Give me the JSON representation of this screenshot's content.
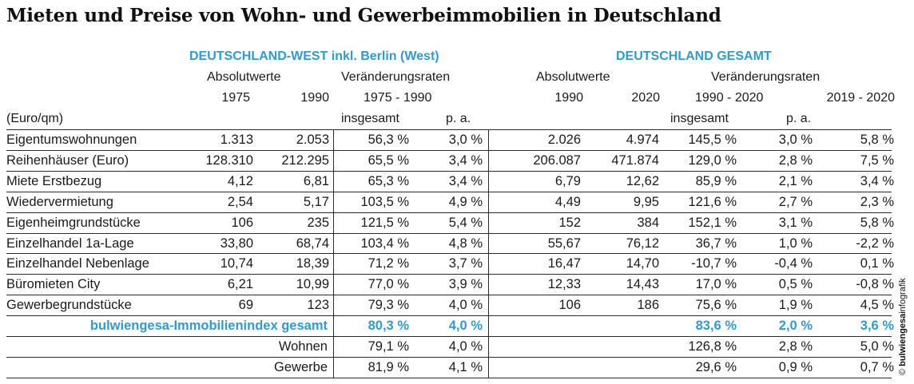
{
  "title": "Mieten und Preise von Wohn- und Gewerbeimmobilien in Deutschland",
  "west": {
    "heading": "DEUTSCHLAND-WEST inkl. Berlin (West)",
    "absolut_label": "Absolutwerte",
    "veraenderung_label": "Veränderungsraten",
    "year_a": "1975",
    "year_b": "1990",
    "range": "1975 - 1990",
    "insgesamt": "insgesamt",
    "pa": "p. a."
  },
  "gesamt": {
    "heading": "DEUTSCHLAND GESAMT",
    "absolut_label": "Absolutwerte",
    "veraenderung_label": "Veränderungsraten",
    "year_a": "1990",
    "year_b": "2020",
    "range": "1990 - 2020",
    "range2": "2019 - 2020",
    "insgesamt": "insgesamt",
    "pa": "p. a."
  },
  "unit_label": "(Euro/qm)",
  "rows": [
    {
      "label": "Eigentumswohnungen",
      "w1975": "1.313",
      "w1990": "2.053",
      "w_ins": "56,3 %",
      "w_pa": "3,0 %",
      "g1990": "2.026",
      "g2020": "4.974",
      "g_ins": "145,5 %",
      "g_pa": "3,0 %",
      "g_yy": "5,8 %"
    },
    {
      "label": "Reihenhäuser (Euro)",
      "w1975": "128.310",
      "w1990": "212.295",
      "w_ins": "65,5 %",
      "w_pa": "3,4 %",
      "g1990": "206.087",
      "g2020": "471.874",
      "g_ins": "129,0 %",
      "g_pa": "2,8 %",
      "g_yy": "7,5 %"
    },
    {
      "label": "Miete Erstbezug",
      "w1975": "4,12",
      "w1990": "6,81",
      "w_ins": "65,3 %",
      "w_pa": "3,4 %",
      "g1990": "6,79",
      "g2020": "12,62",
      "g_ins": "85,9 %",
      "g_pa": "2,1 %",
      "g_yy": "3,4 %"
    },
    {
      "label": "Wiedervermietung",
      "w1975": "2,54",
      "w1990": "5,17",
      "w_ins": "103,5 %",
      "w_pa": "4,9 %",
      "g1990": "4,49",
      "g2020": "9,95",
      "g_ins": "121,6 %",
      "g_pa": "2,7 %",
      "g_yy": "2,3 %"
    },
    {
      "label": "Eigenheimgrundstücke",
      "w1975": "106",
      "w1990": "235",
      "w_ins": "121,5 %",
      "w_pa": "5,4 %",
      "g1990": "152",
      "g2020": "384",
      "g_ins": "152,1 %",
      "g_pa": "3,1 %",
      "g_yy": "5,8 %"
    },
    {
      "label": "Einzelhandel 1a-Lage",
      "w1975": "33,80",
      "w1990": "68,74",
      "w_ins": "103,4 %",
      "w_pa": "4,8 %",
      "g1990": "55,67",
      "g2020": "76,12",
      "g_ins": "36,7 %",
      "g_pa": "1,0 %",
      "g_yy": "-2,2 %"
    },
    {
      "label": "Einzelhandel Nebenlage",
      "w1975": "10,74",
      "w1990": "18,39",
      "w_ins": "71,2 %",
      "w_pa": "3,7 %",
      "g1990": "16,47",
      "g2020": "14,70",
      "g_ins": "-10,7 %",
      "g_pa": "-0,4 %",
      "g_yy": "0,1 %"
    },
    {
      "label": "Büromieten City",
      "w1975": "6,21",
      "w1990": "10,99",
      "w_ins": "77,0 %",
      "w_pa": "3,9 %",
      "g1990": "12,33",
      "g2020": "14,43",
      "g_ins": "17,0 %",
      "g_pa": "0,5 %",
      "g_yy": "-0,8 %"
    },
    {
      "label": "Gewerbegrundstücke",
      "w1975": "69",
      "w1990": "123",
      "w_ins": "79,3 %",
      "w_pa": "4,0 %",
      "g1990": "106",
      "g2020": "186",
      "g_ins": "75,6 %",
      "g_pa": "1,9 %",
      "g_yy": "4,5 %"
    }
  ],
  "index": {
    "label": "bulwiengesa-Immobilienindex gesamt",
    "w_ins": "80,3 %",
    "w_pa": "4,0 %",
    "g_ins": "83,6 %",
    "g_pa": "2,0 %",
    "g_yy": "3,6 %"
  },
  "sub_rows": [
    {
      "label": "Wohnen",
      "w_ins": "79,1 %",
      "w_pa": "4,0 %",
      "g_ins": "126,8 %",
      "g_pa": "2,8 %",
      "g_yy": "5,0 %"
    },
    {
      "label": "Gewerbe",
      "w_ins": "81,9 %",
      "w_pa": "4,1 %",
      "g_ins": "29,6 %",
      "g_pa": "0,9 %",
      "g_yy": "0,7 %"
    }
  ],
  "credit": "© bulwiengesa infografik",
  "colors": {
    "accent": "#2e9bd1",
    "text": "#1a1a1a",
    "rule": "#2a2a2a"
  }
}
